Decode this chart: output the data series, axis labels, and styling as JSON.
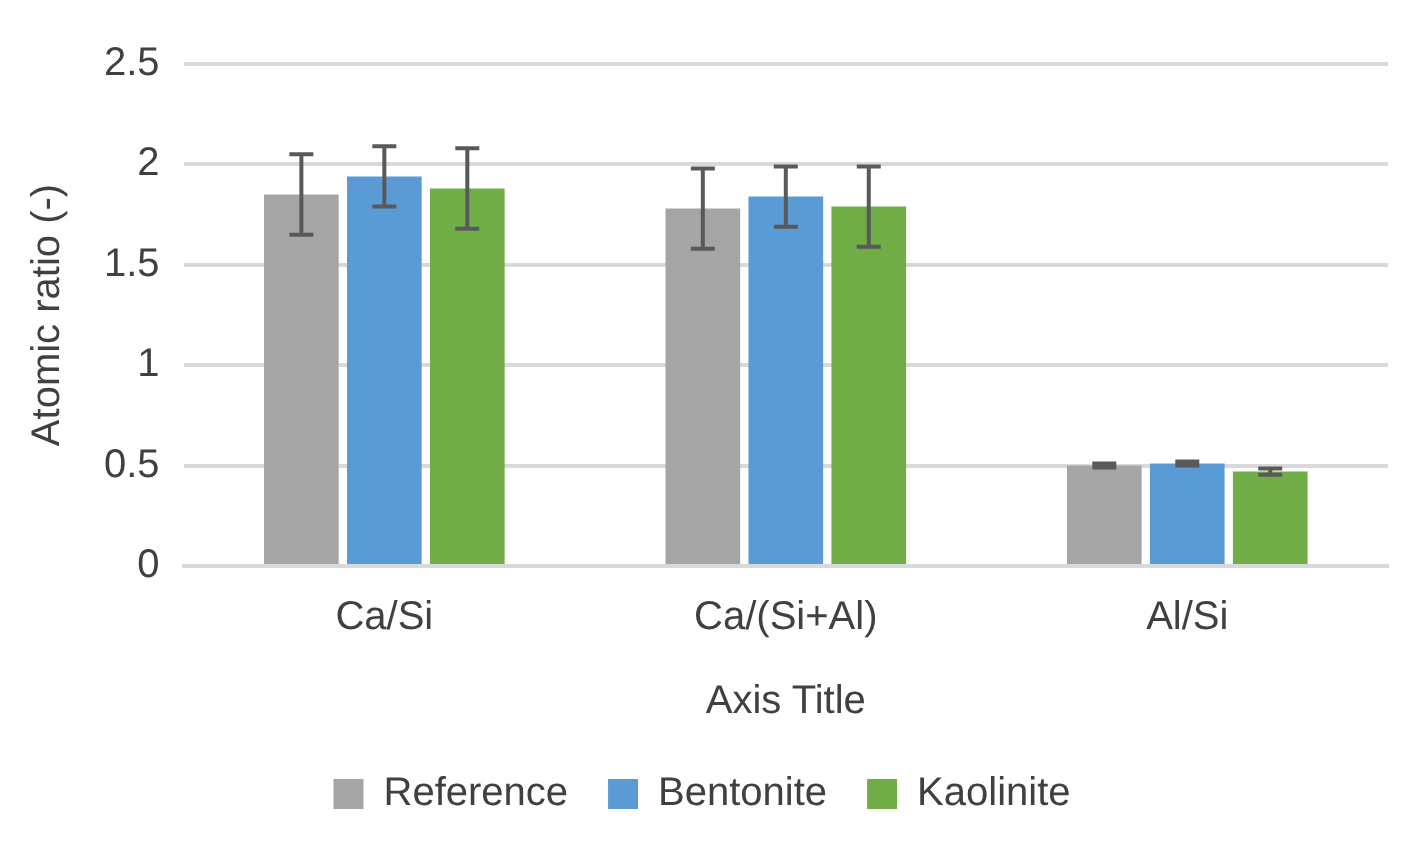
{
  "chart_data": {
    "type": "bar",
    "xlabel": "Axis Title",
    "ylabel": "Atomic ratio (-)",
    "categories": [
      "Ca/Si",
      "Ca/(Si+Al)",
      "Al/Si"
    ],
    "series": [
      {
        "name": "Reference",
        "color": "#a5a5a5",
        "values": [
          1.85,
          1.78,
          0.5
        ],
        "errors": [
          0.2,
          0.2,
          0.01
        ]
      },
      {
        "name": "Bentonite",
        "color": "#5b9bd5",
        "values": [
          1.94,
          1.84,
          0.51
        ],
        "errors": [
          0.15,
          0.15,
          0.01
        ]
      },
      {
        "name": "Kaolinite",
        "color": "#70ad47",
        "values": [
          1.88,
          1.79,
          0.47
        ],
        "errors": [
          0.2,
          0.2,
          0.015
        ]
      }
    ],
    "ylim": [
      0,
      2.5
    ],
    "yticks": [
      0,
      0.5,
      1,
      1.5,
      2,
      2.5
    ],
    "grid": "y",
    "legend": "bottom"
  }
}
